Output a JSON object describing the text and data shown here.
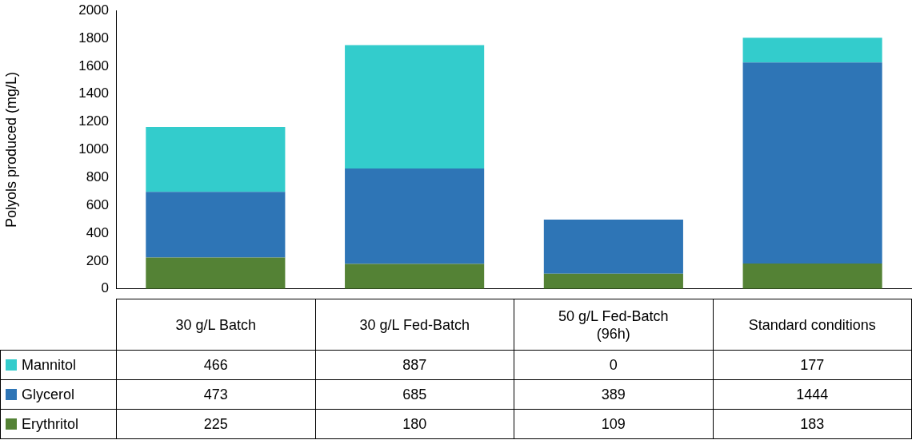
{
  "chart_data": {
    "type": "bar",
    "stacked": true,
    "ylabel": "Polyols produced (mg/L)",
    "categories": [
      "30 g/L Batch",
      "30 g/L Fed-Batch",
      "50 g/L Fed-Batch (96h)",
      "Standard conditions"
    ],
    "series": [
      {
        "name": "Erythritol",
        "color": "#548235",
        "values": [
          225,
          180,
          109,
          183
        ]
      },
      {
        "name": "Glycerol",
        "color": "#2e75b6",
        "values": [
          473,
          685,
          389,
          1444
        ]
      },
      {
        "name": "Mannitol",
        "color": "#33cccc",
        "values": [
          466,
          887,
          0,
          177
        ]
      }
    ],
    "ylim": [
      0,
      2000
    ],
    "yticks": [
      0,
      200,
      400,
      600,
      800,
      1000,
      1200,
      1400,
      1600,
      1800,
      2000
    ],
    "grid": false,
    "data_labels": true,
    "legend": "bottom"
  }
}
